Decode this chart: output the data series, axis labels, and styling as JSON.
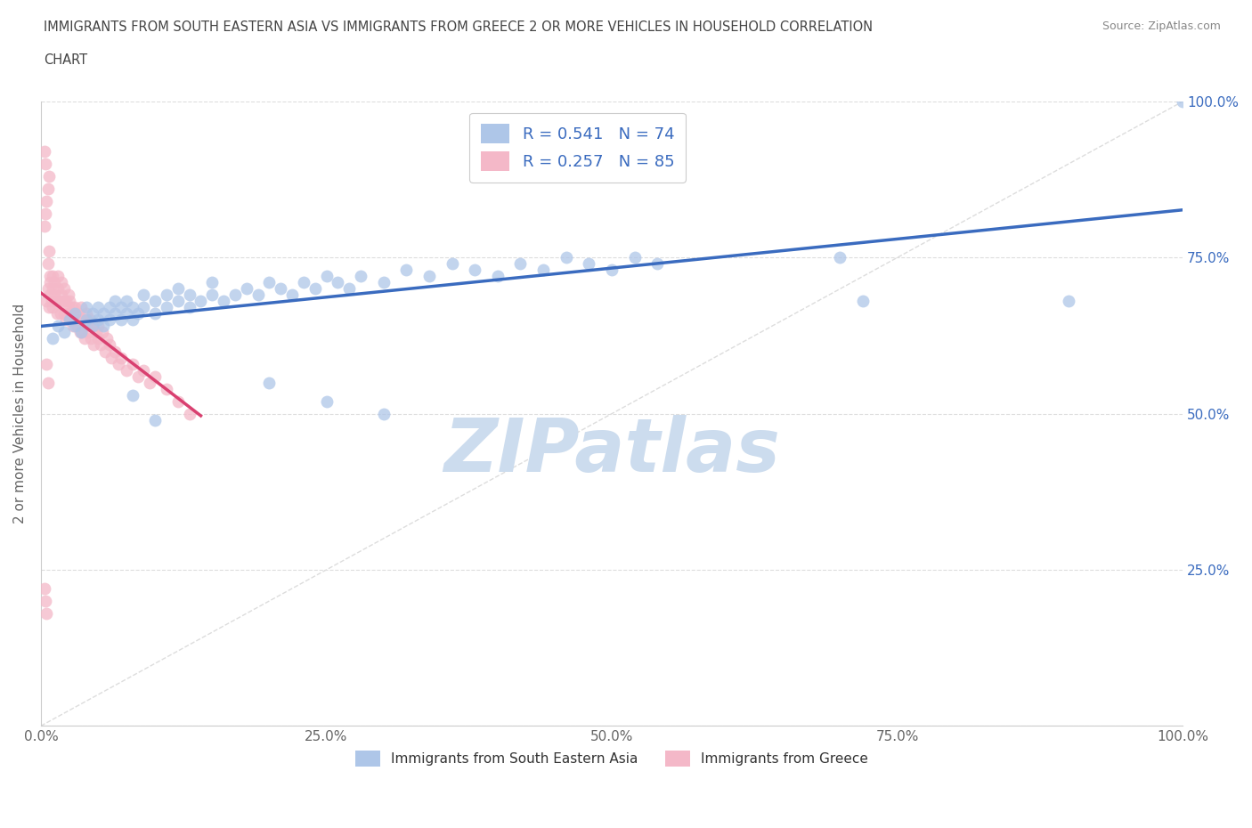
{
  "title_line1": "IMMIGRANTS FROM SOUTH EASTERN ASIA VS IMMIGRANTS FROM GREECE 2 OR MORE VEHICLES IN HOUSEHOLD CORRELATION",
  "title_line2": "CHART",
  "source_text": "Source: ZipAtlas.com",
  "ylabel": "2 or more Vehicles in Household",
  "xlim": [
    0.0,
    1.0
  ],
  "ylim": [
    0.0,
    1.0
  ],
  "xtick_labels": [
    "0.0%",
    "25.0%",
    "50.0%",
    "75.0%",
    "100.0%"
  ],
  "xtick_vals": [
    0.0,
    0.25,
    0.5,
    0.75,
    1.0
  ],
  "ytick_labels_right": [
    "25.0%",
    "50.0%",
    "75.0%",
    "100.0%"
  ],
  "ytick_vals_right": [
    0.25,
    0.5,
    0.75,
    1.0
  ],
  "R_blue": 0.541,
  "N_blue": 74,
  "R_pink": 0.257,
  "N_pink": 85,
  "color_blue": "#aec6e8",
  "color_pink": "#f4b8c8",
  "color_blue_dark": "#3a6bbf",
  "color_pink_dark": "#d94070",
  "title_color": "#555555",
  "legend_R_color": "#3a6bbf",
  "watermark_color": "#ccdcee",
  "grid_color": "#dddddd",
  "legend1_label": "Immigrants from South Eastern Asia",
  "legend2_label": "Immigrants from Greece",
  "blue_scatter_x": [
    0.01,
    0.015,
    0.02,
    0.025,
    0.03,
    0.03,
    0.035,
    0.04,
    0.04,
    0.045,
    0.045,
    0.05,
    0.05,
    0.055,
    0.055,
    0.06,
    0.06,
    0.065,
    0.065,
    0.07,
    0.07,
    0.075,
    0.075,
    0.08,
    0.08,
    0.085,
    0.09,
    0.09,
    0.1,
    0.1,
    0.11,
    0.11,
    0.12,
    0.12,
    0.13,
    0.13,
    0.14,
    0.15,
    0.15,
    0.16,
    0.17,
    0.18,
    0.19,
    0.2,
    0.21,
    0.22,
    0.23,
    0.24,
    0.25,
    0.26,
    0.27,
    0.28,
    0.3,
    0.32,
    0.34,
    0.36,
    0.38,
    0.4,
    0.42,
    0.44,
    0.46,
    0.48,
    0.5,
    0.52,
    0.54,
    0.2,
    0.25,
    0.3,
    0.1,
    0.08,
    0.7,
    0.72,
    0.9,
    1.0
  ],
  "blue_scatter_y": [
    0.62,
    0.64,
    0.63,
    0.65,
    0.64,
    0.66,
    0.63,
    0.65,
    0.67,
    0.64,
    0.66,
    0.65,
    0.67,
    0.64,
    0.66,
    0.65,
    0.67,
    0.66,
    0.68,
    0.65,
    0.67,
    0.66,
    0.68,
    0.65,
    0.67,
    0.66,
    0.67,
    0.69,
    0.66,
    0.68,
    0.67,
    0.69,
    0.68,
    0.7,
    0.67,
    0.69,
    0.68,
    0.69,
    0.71,
    0.68,
    0.69,
    0.7,
    0.69,
    0.71,
    0.7,
    0.69,
    0.71,
    0.7,
    0.72,
    0.71,
    0.7,
    0.72,
    0.71,
    0.73,
    0.72,
    0.74,
    0.73,
    0.72,
    0.74,
    0.73,
    0.75,
    0.74,
    0.73,
    0.75,
    0.74,
    0.55,
    0.52,
    0.5,
    0.49,
    0.53,
    0.75,
    0.68,
    0.68,
    1.0
  ],
  "pink_scatter_x": [
    0.005,
    0.006,
    0.007,
    0.008,
    0.008,
    0.009,
    0.01,
    0.01,
    0.01,
    0.012,
    0.012,
    0.013,
    0.014,
    0.015,
    0.015,
    0.016,
    0.017,
    0.018,
    0.018,
    0.02,
    0.02,
    0.02,
    0.022,
    0.022,
    0.024,
    0.024,
    0.025,
    0.025,
    0.026,
    0.027,
    0.028,
    0.028,
    0.03,
    0.03,
    0.032,
    0.033,
    0.034,
    0.035,
    0.035,
    0.036,
    0.037,
    0.038,
    0.04,
    0.04,
    0.042,
    0.043,
    0.044,
    0.045,
    0.046,
    0.048,
    0.05,
    0.05,
    0.052,
    0.054,
    0.056,
    0.058,
    0.06,
    0.062,
    0.065,
    0.068,
    0.07,
    0.075,
    0.08,
    0.085,
    0.09,
    0.095,
    0.1,
    0.11,
    0.12,
    0.13,
    0.003,
    0.004,
    0.005,
    0.006,
    0.007,
    0.006,
    0.007,
    0.008,
    0.004,
    0.003,
    0.005,
    0.006,
    0.003,
    0.004,
    0.005
  ],
  "pink_scatter_y": [
    0.68,
    0.7,
    0.67,
    0.69,
    0.71,
    0.68,
    0.7,
    0.72,
    0.67,
    0.69,
    0.71,
    0.68,
    0.66,
    0.7,
    0.72,
    0.68,
    0.66,
    0.69,
    0.71,
    0.68,
    0.7,
    0.66,
    0.68,
    0.65,
    0.67,
    0.69,
    0.66,
    0.68,
    0.65,
    0.67,
    0.64,
    0.66,
    0.65,
    0.67,
    0.64,
    0.66,
    0.63,
    0.65,
    0.67,
    0.63,
    0.65,
    0.62,
    0.64,
    0.66,
    0.63,
    0.65,
    0.62,
    0.64,
    0.61,
    0.63,
    0.62,
    0.64,
    0.61,
    0.63,
    0.6,
    0.62,
    0.61,
    0.59,
    0.6,
    0.58,
    0.59,
    0.57,
    0.58,
    0.56,
    0.57,
    0.55,
    0.56,
    0.54,
    0.52,
    0.5,
    0.8,
    0.82,
    0.84,
    0.86,
    0.88,
    0.74,
    0.76,
    0.72,
    0.9,
    0.92,
    0.58,
    0.55,
    0.22,
    0.2,
    0.18
  ]
}
